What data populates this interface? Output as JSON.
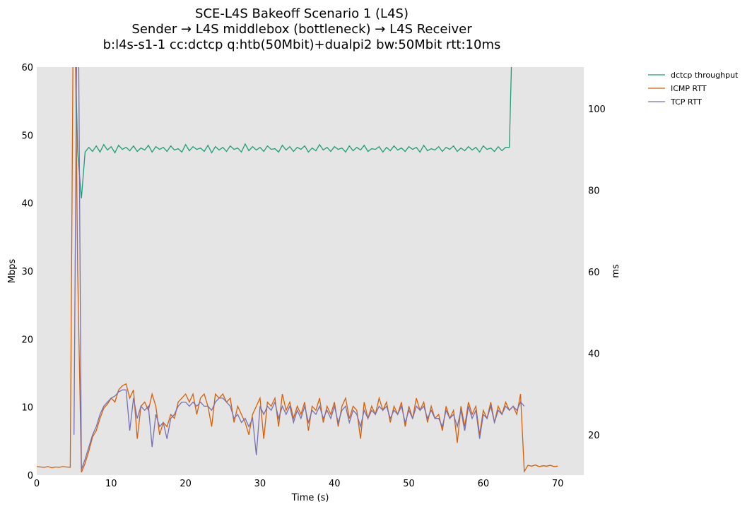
{
  "chart_data": {
    "type": "line",
    "title_lines": [
      "SCE-L4S Bakeoff Scenario 1 (L4S)",
      "Sender → L4S middlebox (bottleneck) → L4S Receiver",
      "b:l4s-s1-1 cc:dctcp q:htb(50Mbit)+dualpi2 bw:50Mbit rtt:10ms"
    ],
    "xlabel": "Time (s)",
    "ylabel": "Mbps",
    "y2label": "ms",
    "xlim": [
      0,
      73.5
    ],
    "ylim": [
      0,
      60
    ],
    "y2lim": [
      10.1,
      110.2
    ],
    "xticks": [
      "0",
      "10",
      "20",
      "30",
      "40",
      "50",
      "60",
      "70"
    ],
    "yticks": [
      "0",
      "10",
      "20",
      "30",
      "40",
      "50",
      "60"
    ],
    "y2ticks": [
      "20",
      "40",
      "60",
      "80",
      "100"
    ],
    "grid": false,
    "legend_placement": "outside-top-right",
    "series": [
      {
        "name": "dctcp throughput",
        "axis": "left",
        "color": "#1b9e77",
        "start": 5.0,
        "step": 0.5,
        "values": [
          70,
          47.5,
          40.7,
          47.5,
          48.2,
          47.6,
          48.4,
          47.5,
          48.6,
          47.8,
          48.3,
          47.4,
          48.5,
          47.9,
          48.2,
          47.7,
          48.4,
          47.6,
          48.1,
          47.8,
          48.5,
          47.5,
          48.3,
          47.9,
          48.2,
          47.6,
          48.4,
          47.8,
          48.0,
          47.5,
          48.6,
          47.7,
          48.3,
          47.9,
          48.1,
          47.6,
          48.5,
          47.4,
          48.3,
          47.8,
          48.2,
          47.6,
          48.4,
          47.9,
          48.1,
          47.5,
          48.7,
          47.7,
          48.3,
          47.8,
          48.2,
          47.6,
          48.4,
          47.9,
          48.0,
          47.5,
          48.5,
          47.8,
          48.3,
          47.6,
          48.2,
          47.9,
          48.4,
          47.5,
          48.1,
          47.7,
          48.6,
          47.8,
          48.2,
          47.6,
          48.3,
          47.9,
          48.1,
          47.5,
          48.4,
          47.7,
          48.2,
          47.8,
          48.5,
          47.6,
          48.0,
          47.9,
          48.3,
          47.5,
          48.2,
          47.7,
          48.4,
          47.8,
          48.1,
          47.6,
          48.3,
          47.9,
          48.2,
          47.5,
          48.5,
          47.7,
          48.0,
          47.8,
          48.3,
          47.6,
          48.2,
          47.9,
          48.4,
          47.6,
          48.1,
          47.7,
          48.3,
          47.8,
          48.2,
          47.5,
          48.4,
          47.9,
          48.1,
          47.6,
          48.3,
          47.7,
          48.2,
          48.2,
          70
        ]
      },
      {
        "name": "ICMP RTT",
        "axis": "right",
        "color": "#d95f02",
        "start": 0,
        "step": 0.5,
        "values": [
          12.2,
          12.1,
          12.0,
          12.2,
          11.9,
          12.1,
          12.0,
          12.2,
          12.1,
          12.0,
          150,
          60,
          10.8,
          13,
          16,
          19.5,
          21,
          24,
          26.5,
          27.5,
          29,
          28,
          31,
          32,
          32.5,
          29,
          31,
          19,
          27,
          28,
          26,
          30,
          27,
          20,
          23,
          22,
          25,
          24,
          28,
          29,
          30,
          28,
          30,
          25,
          29,
          30,
          27,
          22,
          30,
          29,
          30,
          28,
          29,
          23,
          27,
          25,
          23,
          20,
          25,
          27,
          29,
          19,
          28,
          27,
          29,
          22,
          30,
          26,
          28,
          24,
          27,
          25,
          28,
          21,
          27,
          26,
          29,
          23,
          27,
          25,
          28,
          22,
          27,
          29,
          24,
          27,
          26,
          19,
          28,
          24,
          27,
          25,
          29,
          26,
          28,
          23,
          27,
          25,
          28,
          22,
          27,
          24,
          29,
          26,
          28,
          23,
          27,
          24,
          25,
          21,
          27,
          24,
          26,
          18,
          27,
          22,
          28,
          25,
          27,
          20,
          26,
          24,
          28,
          23,
          27,
          25,
          28,
          26,
          27,
          25,
          30,
          11,
          12.5,
          12.3,
          12.6,
          12.2,
          12.4,
          12.3,
          12.5,
          12.2,
          12.3
        ]
      },
      {
        "name": "TCP RTT",
        "axis": "right",
        "color": "#7570b3",
        "start": 5.0,
        "step": 0.5,
        "values": [
          20,
          150,
          11.5,
          14,
          17,
          20,
          22,
          25,
          27,
          28,
          29,
          29.5,
          30.5,
          31,
          31,
          21,
          29,
          24,
          27,
          26,
          27,
          17,
          25,
          22,
          23,
          19,
          24,
          25,
          27,
          28,
          28,
          27,
          28,
          27,
          28,
          27,
          27,
          26,
          28,
          29,
          29,
          28,
          27,
          24,
          25,
          23,
          24,
          22,
          24,
          15,
          27,
          25,
          27,
          26,
          28,
          24,
          27,
          25,
          27,
          23,
          26,
          24,
          27,
          23,
          26,
          25,
          27,
          24,
          26,
          24,
          27,
          23,
          26,
          27,
          23,
          26,
          25,
          22,
          26,
          24,
          26,
          25,
          27,
          26,
          27,
          24,
          26,
          25,
          27,
          23,
          26,
          24,
          27,
          26,
          27,
          24,
          26,
          24,
          24,
          22,
          26,
          24,
          25,
          22,
          26,
          21,
          27,
          24,
          26,
          19,
          25,
          24,
          27,
          23,
          26,
          25,
          27,
          26,
          27,
          26,
          28,
          27
        ]
      }
    ]
  }
}
